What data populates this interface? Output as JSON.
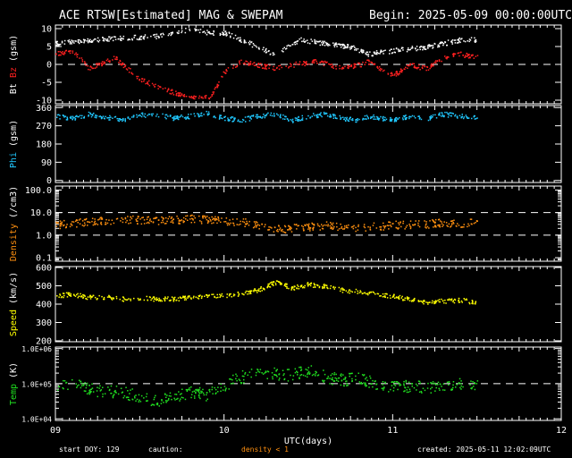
{
  "header": {
    "title": "ACE RTSW[Estimated] MAG & SWEPAM",
    "begin": "Begin: 2025-05-09 00:00:00UTC"
  },
  "footer": {
    "start_doy": "start DOY: 129",
    "caution_label": "caution:",
    "caution_text": "density < 1",
    "created": "created: 2025-05-11 12:02:09UTC"
  },
  "colors": {
    "bt": "#ffffff",
    "bz": "#ff2020",
    "phi": "#20c8ff",
    "density": "#ff9010",
    "speed": "#ffff00",
    "temp": "#20e020",
    "frame": "#ffffff",
    "background": "#000000"
  },
  "chart_data": {
    "type": "scatter",
    "xlabel": "UTC(days)",
    "x_ticks": [
      "09",
      "10",
      "11",
      "12"
    ],
    "xlim": [
      9,
      12
    ],
    "data_end": 11.5,
    "panels": [
      {
        "id": "mag",
        "ylabel_parts": [
          {
            "text": "Bt",
            "color": "#ffffff"
          },
          {
            "text": "Bz",
            "color": "#ff2020"
          },
          {
            "text": "(gsm)",
            "color": "#ffffff"
          }
        ],
        "scale": "linear",
        "ylim": [
          -11,
          11
        ],
        "tick_labels": [
          "10",
          "5",
          "0",
          "-5",
          "-10"
        ],
        "tick_values": [
          10,
          5,
          0,
          -5,
          -10
        ],
        "dashed": [
          0
        ],
        "series": [
          {
            "name": "Bt",
            "color": "#ffffff",
            "t": [
              9.0,
              9.2,
              9.4,
              9.6,
              9.8,
              9.9,
              10.0,
              10.1,
              10.2,
              10.3,
              10.45,
              10.6,
              10.75,
              10.8,
              10.85,
              11.0,
              11.2,
              11.4,
              11.5
            ],
            "v": [
              6,
              7,
              7.5,
              8,
              10,
              9,
              9,
              7,
              5,
              3,
              7,
              6,
              5,
              4,
              3,
              4,
              5,
              7,
              7
            ]
          },
          {
            "name": "Bz",
            "color": "#ff2020",
            "t": [
              9.0,
              9.1,
              9.2,
              9.35,
              9.5,
              9.65,
              9.8,
              9.92,
              10.0,
              10.1,
              10.2,
              10.3,
              10.4,
              10.55,
              10.7,
              10.8,
              10.85,
              11.0,
              11.1,
              11.2,
              11.3,
              11.4,
              11.5
            ],
            "v": [
              3,
              4,
              -1,
              2,
              -4,
              -7,
              -9,
              -9,
              -2,
              1,
              0,
              -1,
              0,
              1,
              -1,
              0,
              1,
              -3,
              0,
              -1,
              2,
              3,
              2
            ]
          }
        ]
      },
      {
        "id": "phi",
        "ylabel_parts": [
          {
            "text": "Phi",
            "color": "#20c8ff"
          },
          {
            "text": "(gsm)",
            "color": "#ffffff"
          }
        ],
        "scale": "linear",
        "ylim": [
          -10,
          370
        ],
        "tick_labels": [
          "360",
          "270",
          "180",
          "90",
          "0"
        ],
        "tick_values": [
          360,
          270,
          180,
          90,
          0
        ],
        "dashed": [],
        "series": [
          {
            "name": "Phi",
            "color": "#20c8ff",
            "t": [
              9.0,
              9.1,
              9.2,
              9.3,
              9.4,
              9.5,
              9.6,
              9.7,
              9.8,
              9.9,
              10.0,
              10.1,
              10.2,
              10.3,
              10.4,
              10.5,
              10.6,
              10.7,
              10.8,
              10.85,
              11.0,
              11.1,
              11.2,
              11.3,
              11.4,
              11.5
            ],
            "v": [
              320,
              310,
              330,
              315,
              300,
              325,
              330,
              310,
              320,
              335,
              310,
              300,
              320,
              330,
              300,
              320,
              330,
              310,
              300,
              320,
              300,
              320,
              310,
              330,
              320,
              315
            ]
          }
        ]
      },
      {
        "id": "density",
        "ylabel_parts": [
          {
            "text": "Density",
            "color": "#ff9010"
          },
          {
            "text": "(/cm3)",
            "color": "#ffffff"
          }
        ],
        "scale": "log",
        "ylim": [
          0.07,
          150
        ],
        "tick_labels": [
          "100.0",
          "10.0",
          "1.0",
          "0.1"
        ],
        "tick_values": [
          100,
          10,
          1,
          0.1
        ],
        "dashed": [
          10,
          1
        ],
        "series": [
          {
            "name": "Density",
            "color": "#ff9010",
            "t": [
              9.0,
              9.1,
              9.2,
              9.3,
              9.4,
              9.5,
              9.6,
              9.7,
              9.8,
              9.9,
              10.0,
              10.1,
              10.2,
              10.3,
              10.35,
              10.4,
              10.5,
              10.6,
              10.7,
              10.8,
              10.9,
              11.0,
              11.1,
              11.2,
              11.3,
              11.4,
              11.5
            ],
            "v": [
              3,
              3.5,
              4,
              4.5,
              5,
              5,
              4.5,
              5,
              5.5,
              5,
              4.5,
              4,
              3,
              2,
              1.8,
              2.2,
              2.5,
              2.8,
              2.5,
              2.3,
              2.5,
              3,
              3,
              3.2,
              3.8,
              3.5,
              4
            ]
          }
        ]
      },
      {
        "id": "speed",
        "ylabel_parts": [
          {
            "text": "Speed",
            "color": "#ffff00"
          },
          {
            "text": "(km/s)",
            "color": "#ffffff"
          }
        ],
        "scale": "linear",
        "ylim": [
          195,
          605
        ],
        "tick_labels": [
          "600",
          "500",
          "400",
          "300",
          "200"
        ],
        "tick_values": [
          600,
          500,
          400,
          300,
          200
        ],
        "dashed": [],
        "series": [
          {
            "name": "Speed",
            "color": "#ffff00",
            "t": [
              9.0,
              9.1,
              9.2,
              9.3,
              9.4,
              9.5,
              9.6,
              9.7,
              9.8,
              9.9,
              10.0,
              10.1,
              10.2,
              10.3,
              10.35,
              10.4,
              10.5,
              10.6,
              10.7,
              10.8,
              10.9,
              11.0,
              11.1,
              11.2,
              11.3,
              11.4,
              11.5
            ],
            "v": [
              450,
              455,
              440,
              440,
              430,
              435,
              430,
              430,
              440,
              450,
              450,
              460,
              480,
              520,
              510,
              490,
              510,
              500,
              480,
              470,
              460,
              445,
              430,
              410,
              420,
              425,
              410
            ]
          }
        ]
      },
      {
        "id": "temp",
        "ylabel_parts": [
          {
            "text": "Temp",
            "color": "#20e020"
          },
          {
            "text": "(K)",
            "color": "#ffffff"
          }
        ],
        "scale": "log",
        "ylim": [
          9000,
          1100000
        ],
        "tick_labels": [
          "1.0E+06",
          "1.0E+05",
          "1.0E+04"
        ],
        "tick_values": [
          1000000,
          100000,
          10000
        ],
        "dashed": [
          100000
        ],
        "series": [
          {
            "name": "Temp",
            "color": "#20e020",
            "t": [
              9.0,
              9.1,
              9.2,
              9.3,
              9.4,
              9.5,
              9.6,
              9.7,
              9.8,
              9.9,
              10.0,
              10.1,
              10.2,
              10.3,
              10.4,
              10.5,
              10.6,
              10.7,
              10.8,
              10.9,
              11.0,
              11.1,
              11.2,
              11.3,
              11.4,
              11.5
            ],
            "v": [
              90000,
              100000,
              70000,
              60000,
              60000,
              40000,
              35000,
              40000,
              60000,
              50000,
              90000,
              160000,
              200000,
              200000,
              180000,
              250000,
              160000,
              130000,
              150000,
              100000,
              80000,
              90000,
              80000,
              90000,
              100000,
              100000
            ]
          }
        ]
      }
    ]
  }
}
